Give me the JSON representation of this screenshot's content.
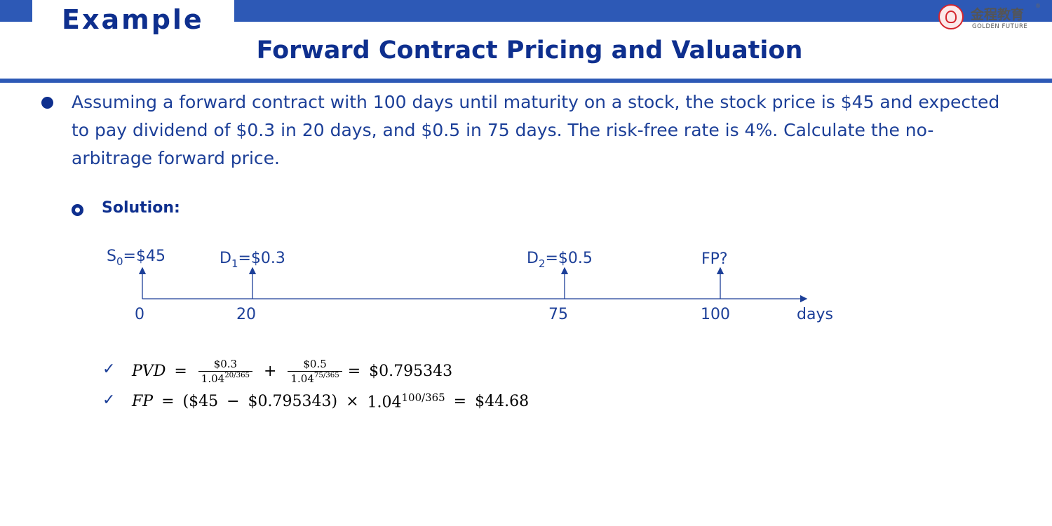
{
  "header": {
    "section_label": "Example",
    "title": "Forward Contract Pricing and Valuation"
  },
  "logo": {
    "name_cn": "金程教育",
    "name_en": "GOLDEN FUTURE",
    "registered_mark": "®",
    "icon": "seal-logo-icon"
  },
  "problem": {
    "text": "Assuming a forward contract with 100 days until maturity on a stock, the stock price is $45 and expected to pay dividend of $0.3 in 20 days, and $0.5 in 75 days. The risk-free rate is 4%. Calculate the no-arbitrage forward price."
  },
  "solution": {
    "label": "Solution:"
  },
  "timeline": {
    "unit_label": "days",
    "points": [
      {
        "day": "0",
        "label_main": "S",
        "label_sub": "0",
        "label_value": "=$45"
      },
      {
        "day": "20",
        "label_main": "D",
        "label_sub": "1",
        "label_value": "=$0.3"
      },
      {
        "day": "75",
        "label_main": "D",
        "label_sub": "2",
        "label_value": "=$0.5"
      },
      {
        "day": "100",
        "label_main": "FP?",
        "label_sub": "",
        "label_value": ""
      }
    ]
  },
  "formulas": {
    "check_mark": "✓",
    "pvd": {
      "lhs": "PVD",
      "eq": "=",
      "term1_num": "$0.3",
      "term1_den_base": "1.04",
      "term1_den_exp": "20/365",
      "plus": "+",
      "term2_num": "$0.5",
      "term2_den_base": "1.04",
      "term2_den_exp": "75/365",
      "eq2": "=",
      "result": "$0.795343"
    },
    "fp": {
      "lhs": "FP",
      "eq": "=",
      "open": "(",
      "a": "$45",
      "minus": "−",
      "b": "$0.795343",
      "close": ")",
      "times": "×",
      "base": "1.04",
      "exp": "100/365",
      "eq2": "=",
      "result": "$44.68"
    }
  },
  "colors": {
    "brand_blue": "#2d59b6",
    "title_navy": "#0e2f8e",
    "body_blue": "#1c3f98",
    "logo_red": "#d4242d"
  }
}
